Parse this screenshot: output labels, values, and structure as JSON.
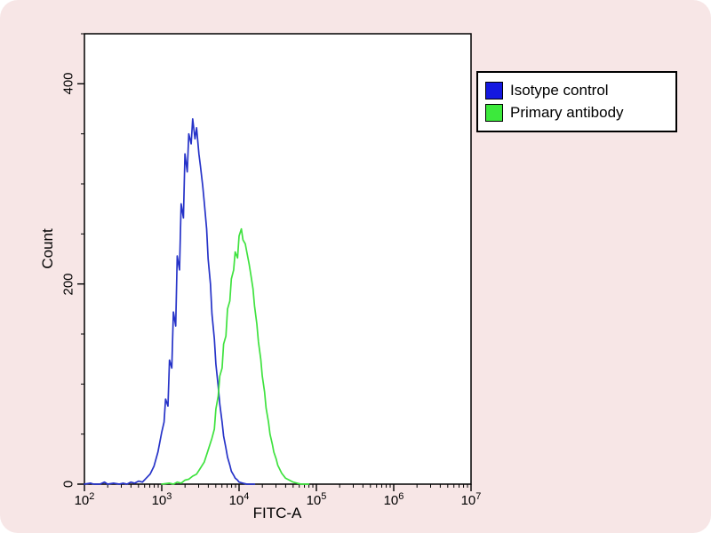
{
  "frame": {
    "background": "#f7e6e6"
  },
  "chart_data": {
    "type": "line",
    "subtype": "flow-cytometry-histogram",
    "title": "",
    "xlabel": "FITC-A",
    "ylabel": "Count",
    "x_scale": "log10",
    "x_tick_base": "10",
    "x_tick_exponents": [
      2,
      3,
      4,
      5,
      6,
      7
    ],
    "x_range_log": [
      2,
      7
    ],
    "y_ticks": [
      0,
      200,
      400
    ],
    "ylim": [
      0,
      450
    ],
    "grid": false,
    "legend_position": "top-right",
    "series": [
      {
        "name": "Isotype control",
        "color": "#2633c8",
        "swatch_color": "#1418e0",
        "peak_x": 2500,
        "peak_count": 365,
        "points": [
          [
            2.0,
            0
          ],
          [
            2.08,
            1
          ],
          [
            2.12,
            0
          ],
          [
            2.2,
            0
          ],
          [
            2.26,
            2
          ],
          [
            2.3,
            0
          ],
          [
            2.38,
            1
          ],
          [
            2.45,
            0
          ],
          [
            2.5,
            1
          ],
          [
            2.55,
            0
          ],
          [
            2.6,
            2
          ],
          [
            2.65,
            1
          ],
          [
            2.7,
            3
          ],
          [
            2.75,
            2
          ],
          [
            2.8,
            6
          ],
          [
            2.85,
            10
          ],
          [
            2.9,
            18
          ],
          [
            2.95,
            32
          ],
          [
            3.0,
            52
          ],
          [
            3.03,
            62
          ],
          [
            3.05,
            85
          ],
          [
            3.08,
            78
          ],
          [
            3.1,
            124
          ],
          [
            3.13,
            116
          ],
          [
            3.15,
            172
          ],
          [
            3.18,
            158
          ],
          [
            3.2,
            228
          ],
          [
            3.23,
            214
          ],
          [
            3.25,
            280
          ],
          [
            3.28,
            266
          ],
          [
            3.3,
            330
          ],
          [
            3.33,
            312
          ],
          [
            3.35,
            350
          ],
          [
            3.38,
            340
          ],
          [
            3.4,
            365
          ],
          [
            3.43,
            345
          ],
          [
            3.45,
            356
          ],
          [
            3.48,
            330
          ],
          [
            3.5,
            318
          ],
          [
            3.53,
            298
          ],
          [
            3.55,
            282
          ],
          [
            3.58,
            255
          ],
          [
            3.6,
            225
          ],
          [
            3.63,
            200
          ],
          [
            3.65,
            170
          ],
          [
            3.68,
            145
          ],
          [
            3.7,
            120
          ],
          [
            3.73,
            98
          ],
          [
            3.75,
            80
          ],
          [
            3.78,
            62
          ],
          [
            3.8,
            48
          ],
          [
            3.83,
            36
          ],
          [
            3.85,
            27
          ],
          [
            3.88,
            19
          ],
          [
            3.9,
            13
          ],
          [
            3.93,
            9
          ],
          [
            3.95,
            6
          ],
          [
            3.98,
            4
          ],
          [
            4.0,
            2
          ],
          [
            4.05,
            1
          ],
          [
            4.1,
            0
          ],
          [
            4.2,
            0
          ]
        ]
      },
      {
        "name": "Primary antibody",
        "color": "#3fe23f",
        "swatch_color": "#3ce93c",
        "peak_x": 11000,
        "peak_count": 255,
        "points": [
          [
            3.0,
            0
          ],
          [
            3.1,
            1
          ],
          [
            3.15,
            0
          ],
          [
            3.2,
            2
          ],
          [
            3.25,
            1
          ],
          [
            3.3,
            4
          ],
          [
            3.35,
            5
          ],
          [
            3.4,
            8
          ],
          [
            3.45,
            10
          ],
          [
            3.5,
            16
          ],
          [
            3.55,
            22
          ],
          [
            3.6,
            34
          ],
          [
            3.65,
            46
          ],
          [
            3.68,
            55
          ],
          [
            3.7,
            75
          ],
          [
            3.73,
            88
          ],
          [
            3.75,
            108
          ],
          [
            3.78,
            116
          ],
          [
            3.8,
            140
          ],
          [
            3.83,
            148
          ],
          [
            3.85,
            175
          ],
          [
            3.88,
            183
          ],
          [
            3.9,
            205
          ],
          [
            3.93,
            214
          ],
          [
            3.95,
            232
          ],
          [
            3.98,
            226
          ],
          [
            4.0,
            248
          ],
          [
            4.03,
            255
          ],
          [
            4.05,
            244
          ],
          [
            4.08,
            240
          ],
          [
            4.1,
            232
          ],
          [
            4.13,
            220
          ],
          [
            4.15,
            210
          ],
          [
            4.18,
            195
          ],
          [
            4.2,
            178
          ],
          [
            4.23,
            160
          ],
          [
            4.25,
            142
          ],
          [
            4.28,
            125
          ],
          [
            4.3,
            108
          ],
          [
            4.33,
            92
          ],
          [
            4.35,
            76
          ],
          [
            4.38,
            62
          ],
          [
            4.4,
            50
          ],
          [
            4.43,
            40
          ],
          [
            4.45,
            32
          ],
          [
            4.48,
            25
          ],
          [
            4.5,
            19
          ],
          [
            4.55,
            11
          ],
          [
            4.6,
            6
          ],
          [
            4.65,
            4
          ],
          [
            4.7,
            2
          ],
          [
            4.75,
            1
          ],
          [
            4.8,
            0
          ],
          [
            4.9,
            0
          ]
        ]
      }
    ]
  }
}
